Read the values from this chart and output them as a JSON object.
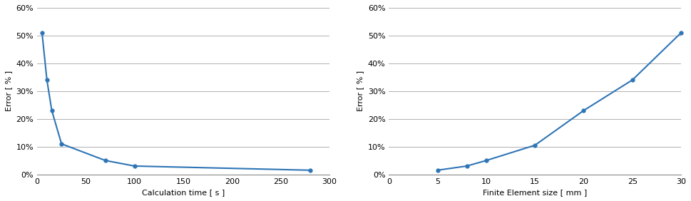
{
  "chart1": {
    "x": [
      5,
      10,
      15,
      25,
      70,
      100,
      280
    ],
    "y": [
      0.51,
      0.34,
      0.23,
      0.11,
      0.05,
      0.03,
      0.015
    ],
    "xlabel": "Calculation time [ s ]",
    "ylabel": "Error [ % ]",
    "xlim": [
      0,
      300
    ],
    "ylim": [
      0,
      0.6
    ],
    "xticks": [
      0,
      50,
      100,
      150,
      200,
      250,
      300
    ],
    "yticks": [
      0.0,
      0.1,
      0.2,
      0.3,
      0.4,
      0.5,
      0.6
    ]
  },
  "chart2": {
    "x": [
      5,
      8,
      10,
      15,
      20,
      25,
      30
    ],
    "y": [
      0.015,
      0.03,
      0.05,
      0.105,
      0.23,
      0.34,
      0.51
    ],
    "xlabel": "Finite Element size [ mm ]",
    "ylabel": "Error [ % ]",
    "xlim": [
      0,
      30
    ],
    "ylim": [
      0,
      0.6
    ],
    "xticks": [
      0,
      5,
      10,
      15,
      20,
      25,
      30
    ],
    "yticks": [
      0.0,
      0.1,
      0.2,
      0.3,
      0.4,
      0.5,
      0.6
    ]
  },
  "line_color": "#2E75B6",
  "marker": "o",
  "marker_size": 3.5,
  "line_width": 1.5,
  "ylabel_fontsize": 8,
  "xlabel_fontsize": 8,
  "tick_fontsize": 8,
  "bg_color": "#ffffff",
  "grid_color": "#b0b0b0"
}
